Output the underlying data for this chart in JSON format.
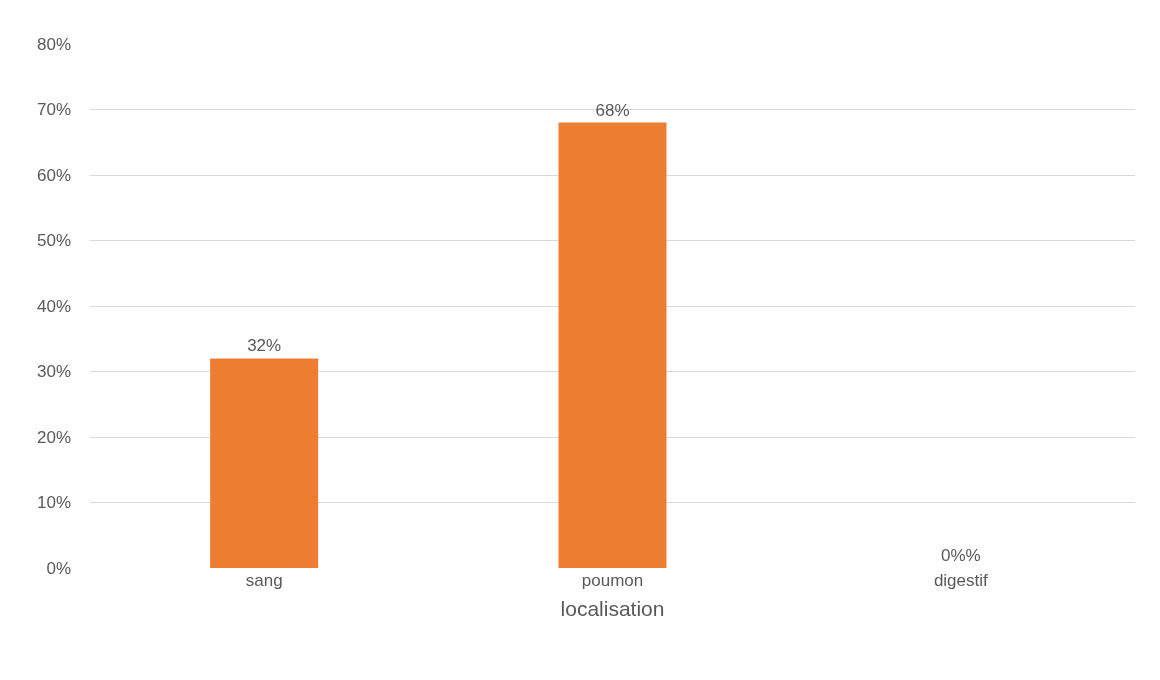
{
  "chart_data": {
    "type": "bar",
    "xlabel": "localisation",
    "categories": [
      "sang",
      "poumon",
      "digestif"
    ],
    "values": [
      32,
      68,
      0
    ],
    "value_labels": [
      "32%",
      "68%",
      "0%%"
    ],
    "color": "#ed7d31",
    "ylim": [
      0,
      80
    ],
    "yticks": [
      {
        "value": 0,
        "label": "0%"
      },
      {
        "value": 10,
        "label": "10%"
      },
      {
        "value": 20,
        "label": "20%"
      },
      {
        "value": 30,
        "label": "30%"
      },
      {
        "value": 40,
        "label": "40%"
      },
      {
        "value": 50,
        "label": "50%"
      },
      {
        "value": 60,
        "label": "60%"
      },
      {
        "value": 70,
        "label": "70%"
      },
      {
        "value": 80,
        "label": "80%"
      }
    ],
    "grid": "y"
  }
}
